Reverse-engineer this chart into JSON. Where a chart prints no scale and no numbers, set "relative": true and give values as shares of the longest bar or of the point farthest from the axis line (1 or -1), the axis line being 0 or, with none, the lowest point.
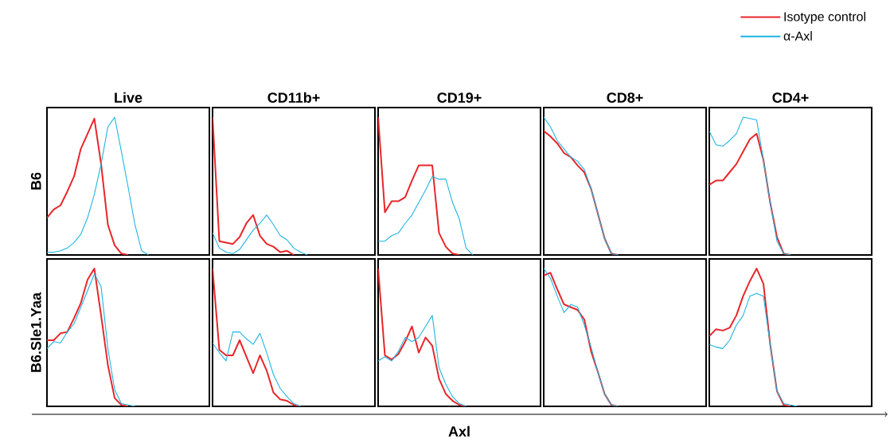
{
  "chart_data": [
    {
      "type": "line",
      "relative": true,
      "title": "Live",
      "ylabel": "B6",
      "categories": [
        null,
        null,
        null,
        null,
        null,
        null,
        null,
        null,
        null,
        null,
        null,
        null,
        null,
        null,
        null,
        null,
        null,
        null,
        null,
        null,
        null,
        null,
        null,
        null,
        null
      ],
      "series": [
        {
          "color": "#e8262a",
          "values": [
            0.27,
            0.33,
            0.36,
            0.46,
            0.57,
            0.77,
            0.88,
            0.99,
            0.66,
            0.22,
            0.07,
            0.01,
            0,
            null,
            null,
            null,
            null,
            null,
            null,
            null,
            null,
            null,
            null,
            null,
            null
          ]
        },
        {
          "color": "#1ab4e0",
          "values": [
            0.02,
            0.02,
            0.03,
            0.05,
            0.09,
            0.15,
            0.27,
            0.44,
            0.66,
            0.93,
            1.0,
            0.75,
            0.49,
            0.22,
            0.03,
            0,
            null,
            null,
            null,
            null,
            null,
            null,
            null,
            null,
            null
          ]
        }
      ]
    },
    {
      "type": "line",
      "relative": true,
      "title": "CD11b+",
      "categories": [
        null,
        null,
        null,
        null,
        null,
        null,
        null,
        null,
        null,
        null,
        null,
        null,
        null,
        null,
        null,
        null,
        null,
        null,
        null,
        null,
        null,
        null,
        null,
        null,
        null
      ],
      "series": [
        {
          "color": "#e8262a",
          "values": [
            1.0,
            0.1,
            0.09,
            0.08,
            0.13,
            0.23,
            0.29,
            0.14,
            0.08,
            0.06,
            0.02,
            0.03,
            0,
            null,
            null,
            null,
            null,
            null,
            null,
            null,
            null,
            null,
            null,
            null,
            null
          ]
        },
        {
          "color": "#1ab4e0",
          "values": [
            0.16,
            0.05,
            0.02,
            0.01,
            0.04,
            0.11,
            0.18,
            0.23,
            0.29,
            0.22,
            0.14,
            0.11,
            0.05,
            0.02,
            0,
            null,
            null,
            null,
            null,
            null,
            null,
            null,
            null,
            null,
            null
          ]
        }
      ]
    },
    {
      "type": "line",
      "relative": true,
      "title": "CD19+",
      "categories": [
        null,
        null,
        null,
        null,
        null,
        null,
        null,
        null,
        null,
        null,
        null,
        null,
        null,
        null,
        null,
        null,
        null,
        null,
        null,
        null,
        null,
        null,
        null,
        null,
        null
      ],
      "series": [
        {
          "color": "#e8262a",
          "values": [
            1.0,
            0.31,
            0.39,
            0.39,
            0.42,
            0.54,
            0.65,
            0.65,
            0.65,
            0.16,
            0.06,
            0.01,
            0,
            null,
            null,
            null,
            null,
            null,
            null,
            null,
            null,
            null,
            null,
            null,
            null
          ]
        },
        {
          "color": "#1ab4e0",
          "values": [
            0.1,
            0.1,
            0.14,
            0.16,
            0.23,
            0.29,
            0.38,
            0.47,
            0.57,
            0.55,
            0.55,
            0.38,
            0.26,
            0.05,
            0,
            null,
            null,
            null,
            null,
            null,
            null,
            null,
            null,
            null,
            null
          ]
        }
      ]
    },
    {
      "type": "line",
      "relative": true,
      "title": "CD8+",
      "categories": [
        null,
        null,
        null,
        null,
        null,
        null,
        null,
        null,
        null,
        null,
        null,
        null,
        null,
        null,
        null,
        null,
        null,
        null,
        null,
        null,
        null,
        null,
        null,
        null,
        null
      ],
      "series": [
        {
          "color": "#e8262a",
          "values": [
            0.9,
            0.86,
            0.81,
            0.74,
            0.71,
            0.65,
            0.6,
            0.48,
            0.3,
            0.12,
            0.01,
            0,
            null,
            null,
            null,
            null,
            null,
            null,
            null,
            null,
            null,
            null,
            null,
            null,
            null
          ]
        },
        {
          "color": "#1ab4e0",
          "values": [
            1.0,
            0.93,
            0.83,
            0.77,
            0.71,
            0.68,
            0.62,
            0.48,
            0.3,
            0.12,
            0.01,
            0,
            null,
            null,
            null,
            null,
            null,
            null,
            null,
            null,
            null,
            null,
            null,
            null,
            null
          ]
        }
      ]
    },
    {
      "type": "line",
      "relative": true,
      "title": "CD4+",
      "legend": "top right",
      "categories": [
        null,
        null,
        null,
        null,
        null,
        null,
        null,
        null,
        null,
        null,
        null,
        null,
        null,
        null,
        null,
        null,
        null,
        null,
        null,
        null,
        null,
        null,
        null,
        null,
        null
      ],
      "series": [
        {
          "name": "Isotype control",
          "color": "#e8262a",
          "values": [
            0.51,
            0.54,
            0.54,
            0.6,
            0.66,
            0.75,
            0.84,
            0.88,
            0.69,
            0.38,
            0.13,
            0.01,
            0,
            null,
            null,
            null,
            null,
            null,
            null,
            null,
            null,
            null,
            null,
            null,
            null
          ]
        },
        {
          "name": "α-Axl",
          "color": "#1ab4e0",
          "values": [
            0.9,
            0.8,
            0.79,
            0.83,
            0.88,
            1.0,
            0.99,
            0.98,
            0.69,
            0.38,
            0.1,
            0.01,
            0,
            null,
            null,
            null,
            null,
            null,
            null,
            null,
            null,
            null,
            null,
            null,
            null
          ]
        }
      ]
    },
    {
      "type": "line",
      "relative": true,
      "ylabel": "B6.Sle1.Yaa",
      "categories": [
        null,
        null,
        null,
        null,
        null,
        null,
        null,
        null,
        null,
        null,
        null,
        null,
        null,
        null,
        null,
        null,
        null,
        null,
        null,
        null,
        null,
        null,
        null,
        null,
        null
      ],
      "series": [
        {
          "color": "#e8262a",
          "values": [
            0.48,
            0.48,
            0.53,
            0.54,
            0.64,
            0.75,
            0.92,
            1.0,
            0.66,
            0.3,
            0.06,
            0.01,
            0,
            null,
            null,
            null,
            null,
            null,
            null,
            null,
            null,
            null,
            null,
            null,
            null
          ]
        },
        {
          "color": "#1ab4e0",
          "values": [
            0.42,
            0.47,
            0.46,
            0.54,
            0.6,
            0.72,
            0.84,
            0.96,
            0.87,
            0.42,
            0.12,
            0.02,
            0.01,
            0,
            null,
            null,
            null,
            null,
            null,
            null,
            null,
            null,
            null,
            null,
            null
          ]
        }
      ]
    },
    {
      "type": "line",
      "relative": true,
      "categories": [
        null,
        null,
        null,
        null,
        null,
        null,
        null,
        null,
        null,
        null,
        null,
        null,
        null,
        null,
        null,
        null,
        null,
        null,
        null,
        null,
        null,
        null,
        null,
        null,
        null
      ],
      "series": [
        {
          "color": "#e8262a",
          "values": [
            1.0,
            0.41,
            0.37,
            0.37,
            0.48,
            0.36,
            0.24,
            0.37,
            0.26,
            0.1,
            0.05,
            0.04,
            0.01,
            0,
            null,
            null,
            null,
            null,
            null,
            null,
            null,
            null,
            null,
            null,
            null
          ]
        },
        {
          "color": "#1ab4e0",
          "values": [
            0.46,
            0.39,
            0.33,
            0.54,
            0.54,
            0.49,
            0.45,
            0.53,
            0.39,
            0.23,
            0.13,
            0.07,
            0.02,
            0,
            null,
            null,
            null,
            null,
            null,
            null,
            null,
            null,
            null,
            null,
            null
          ]
        }
      ]
    },
    {
      "type": "line",
      "relative": true,
      "xlabel": "Axl",
      "categories": [
        null,
        null,
        null,
        null,
        null,
        null,
        null,
        null,
        null,
        null,
        null,
        null,
        null,
        null,
        null,
        null,
        null,
        null,
        null,
        null,
        null,
        null,
        null,
        null,
        null
      ],
      "series": [
        {
          "color": "#e8262a",
          "values": [
            1.0,
            0.37,
            0.34,
            0.38,
            0.47,
            0.58,
            0.39,
            0.5,
            0.44,
            0.2,
            0.09,
            0.04,
            0.01,
            0,
            null,
            null,
            null,
            null,
            null,
            null,
            null,
            null,
            null,
            null,
            null
          ]
        },
        {
          "color": "#1ab4e0",
          "values": [
            0.33,
            0.36,
            0.33,
            0.4,
            0.5,
            0.47,
            0.5,
            0.58,
            0.66,
            0.28,
            0.16,
            0.07,
            0.02,
            0,
            null,
            null,
            null,
            null,
            null,
            null,
            null,
            null,
            null,
            null,
            null
          ]
        }
      ]
    },
    {
      "type": "line",
      "relative": true,
      "categories": [
        null,
        null,
        null,
        null,
        null,
        null,
        null,
        null,
        null,
        null,
        null,
        null,
        null,
        null,
        null,
        null,
        null,
        null,
        null,
        null,
        null,
        null,
        null,
        null,
        null
      ],
      "series": [
        {
          "color": "#e8262a",
          "values": [
            0.95,
            0.97,
            0.85,
            0.74,
            0.72,
            0.7,
            0.63,
            0.4,
            0.25,
            0.09,
            0.01,
            0,
            null,
            null,
            null,
            null,
            null,
            null,
            null,
            null,
            null,
            null,
            null,
            null,
            null
          ]
        },
        {
          "color": "#1ab4e0",
          "values": [
            1.0,
            0.93,
            0.8,
            0.68,
            0.74,
            0.72,
            0.59,
            0.43,
            0.25,
            0.09,
            0.01,
            0,
            null,
            null,
            null,
            null,
            null,
            null,
            null,
            null,
            null,
            null,
            null,
            null,
            null
          ]
        }
      ]
    },
    {
      "type": "line",
      "relative": true,
      "categories": [
        null,
        null,
        null,
        null,
        null,
        null,
        null,
        null,
        null,
        null,
        null,
        null,
        null,
        null,
        null,
        null,
        null,
        null,
        null,
        null,
        null,
        null,
        null,
        null,
        null
      ],
      "series": [
        {
          "color": "#e8262a",
          "values": [
            0.51,
            0.56,
            0.55,
            0.57,
            0.66,
            0.8,
            0.91,
            1.0,
            0.89,
            0.45,
            0.11,
            0.01,
            0,
            null,
            null,
            null,
            null,
            null,
            null,
            null,
            null,
            null,
            null,
            null,
            null
          ]
        },
        {
          "color": "#1ab4e0",
          "values": [
            0.45,
            0.43,
            0.42,
            0.48,
            0.59,
            0.66,
            0.8,
            0.82,
            0.8,
            0.45,
            0.11,
            0.02,
            0.01,
            0,
            null,
            null,
            null,
            null,
            null,
            null,
            null,
            null,
            null,
            null,
            null
          ]
        }
      ]
    }
  ]
}
